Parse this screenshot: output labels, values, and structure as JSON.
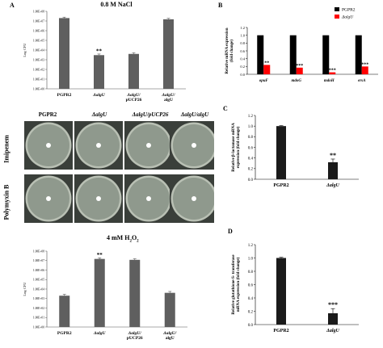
{
  "panel_labels": {
    "A": "A",
    "B": "B",
    "C": "C",
    "D": "D"
  },
  "chart_data": [
    {
      "id": "nacl",
      "type": "bar",
      "title": "0.8 M NaCl",
      "ylabel": "Log CFU",
      "log_scale": true,
      "ylim": [
        1,
        100000000
      ],
      "yticks": [
        "1.00E+00",
        "1.00E+01",
        "1.00E+02",
        "1.00E+03",
        "1.00E+04",
        "1.00E+05",
        "1.00E+06",
        "1.00E+07",
        "1.00E+08"
      ],
      "categories": [
        [
          "PGPR2"
        ],
        [
          "ΔalgU"
        ],
        [
          "ΔalgU/",
          "pUCP26"
        ],
        [
          "ΔalgU/",
          "algU"
        ]
      ],
      "values": [
        20000000,
        3000,
        4000,
        15000000
      ],
      "errors": [
        1.25,
        1.3,
        1.3,
        1.25
      ],
      "significance": [
        "",
        "**",
        "",
        ""
      ],
      "grid": false
    },
    {
      "id": "h2o2",
      "type": "bar",
      "title": "4 mM H2O2",
      "ylabel": "Log CFU",
      "log_scale": true,
      "ylim": [
        1,
        100000000
      ],
      "yticks": [
        "1.00E+00",
        "1.00E+01",
        "1.00E+02",
        "1.00E+03",
        "1.00E+04",
        "1.00E+05",
        "1.00E+06",
        "1.00E+07",
        "1.00E+08"
      ],
      "categories": [
        [
          "PGPR2"
        ],
        [
          "ΔalgU"
        ],
        [
          "ΔalgU/",
          "pUCP26"
        ],
        [
          "ΔalgU/",
          "algU"
        ]
      ],
      "values": [
        2000,
        15000000,
        12000000,
        4000
      ],
      "errors": [
        1.4,
        1.3,
        1.3,
        1.4
      ],
      "significance": [
        "",
        "**",
        "",
        ""
      ],
      "grid": false
    },
    {
      "id": "genes",
      "type": "bar",
      "ylabel": [
        "Relative mRNA expression",
        "(fold change)"
      ],
      "ylim": [
        0,
        1.2
      ],
      "yticks": [
        "0.0",
        "0.2",
        "0.4",
        "0.6",
        "0.8",
        "1.0",
        "1.2"
      ],
      "categories": [
        "opuF",
        "mdoG",
        "mdoH",
        "ersA"
      ],
      "legend": {
        "placement": "top-right",
        "entries": [
          "PGPR2",
          "ΔalgU"
        ]
      },
      "series": [
        {
          "name": "PGPR2",
          "color": "#000000",
          "values": [
            1.0,
            1.0,
            1.0,
            1.0
          ]
        },
        {
          "name": "ΔalgU",
          "color": "#ff0000",
          "values": [
            0.24,
            0.17,
            0.05,
            0.2
          ]
        }
      ],
      "significance": [
        "**",
        "***",
        "***",
        "***"
      ],
      "grid": false
    },
    {
      "id": "lactamase",
      "type": "bar",
      "ylabel": [
        "Relative β-lactamase mRNA",
        "expression (fold change)"
      ],
      "ylim": [
        0,
        1.2
      ],
      "yticks": [
        "0.0",
        "0.2",
        "0.4",
        "0.6",
        "0.8",
        "1.0",
        "1.2"
      ],
      "categories": [
        "PGPR2",
        "ΔalgU"
      ],
      "values": [
        1.0,
        0.32
      ],
      "errors": [
        0.01,
        0.06
      ],
      "significance": [
        "",
        "**"
      ],
      "grid": false
    },
    {
      "id": "gst",
      "type": "bar",
      "ylabel": [
        "Relative glutathione-S- transferase",
        "mRNA expression (fold change)"
      ],
      "ylim": [
        0,
        1.2
      ],
      "yticks": [
        "0.0",
        "0.2",
        "0.4",
        "0.6",
        "0.8",
        "1.0",
        "1.2"
      ],
      "categories": [
        "PGPR2",
        "ΔalgU"
      ],
      "values": [
        1.0,
        0.17
      ],
      "errors": [
        0.01,
        0.07
      ],
      "significance": [
        "",
        "***"
      ],
      "grid": false
    }
  ],
  "plates": {
    "columns": [
      "PGPR2",
      "ΔalgU",
      "ΔalgU/pUCP26",
      "ΔalgU/algU"
    ],
    "rows": [
      "Imipenem",
      "Polymyxin B"
    ],
    "colors": {
      "dish": "#b9c0b4",
      "agar": "#8f998d",
      "disc": "#ffffff"
    }
  }
}
